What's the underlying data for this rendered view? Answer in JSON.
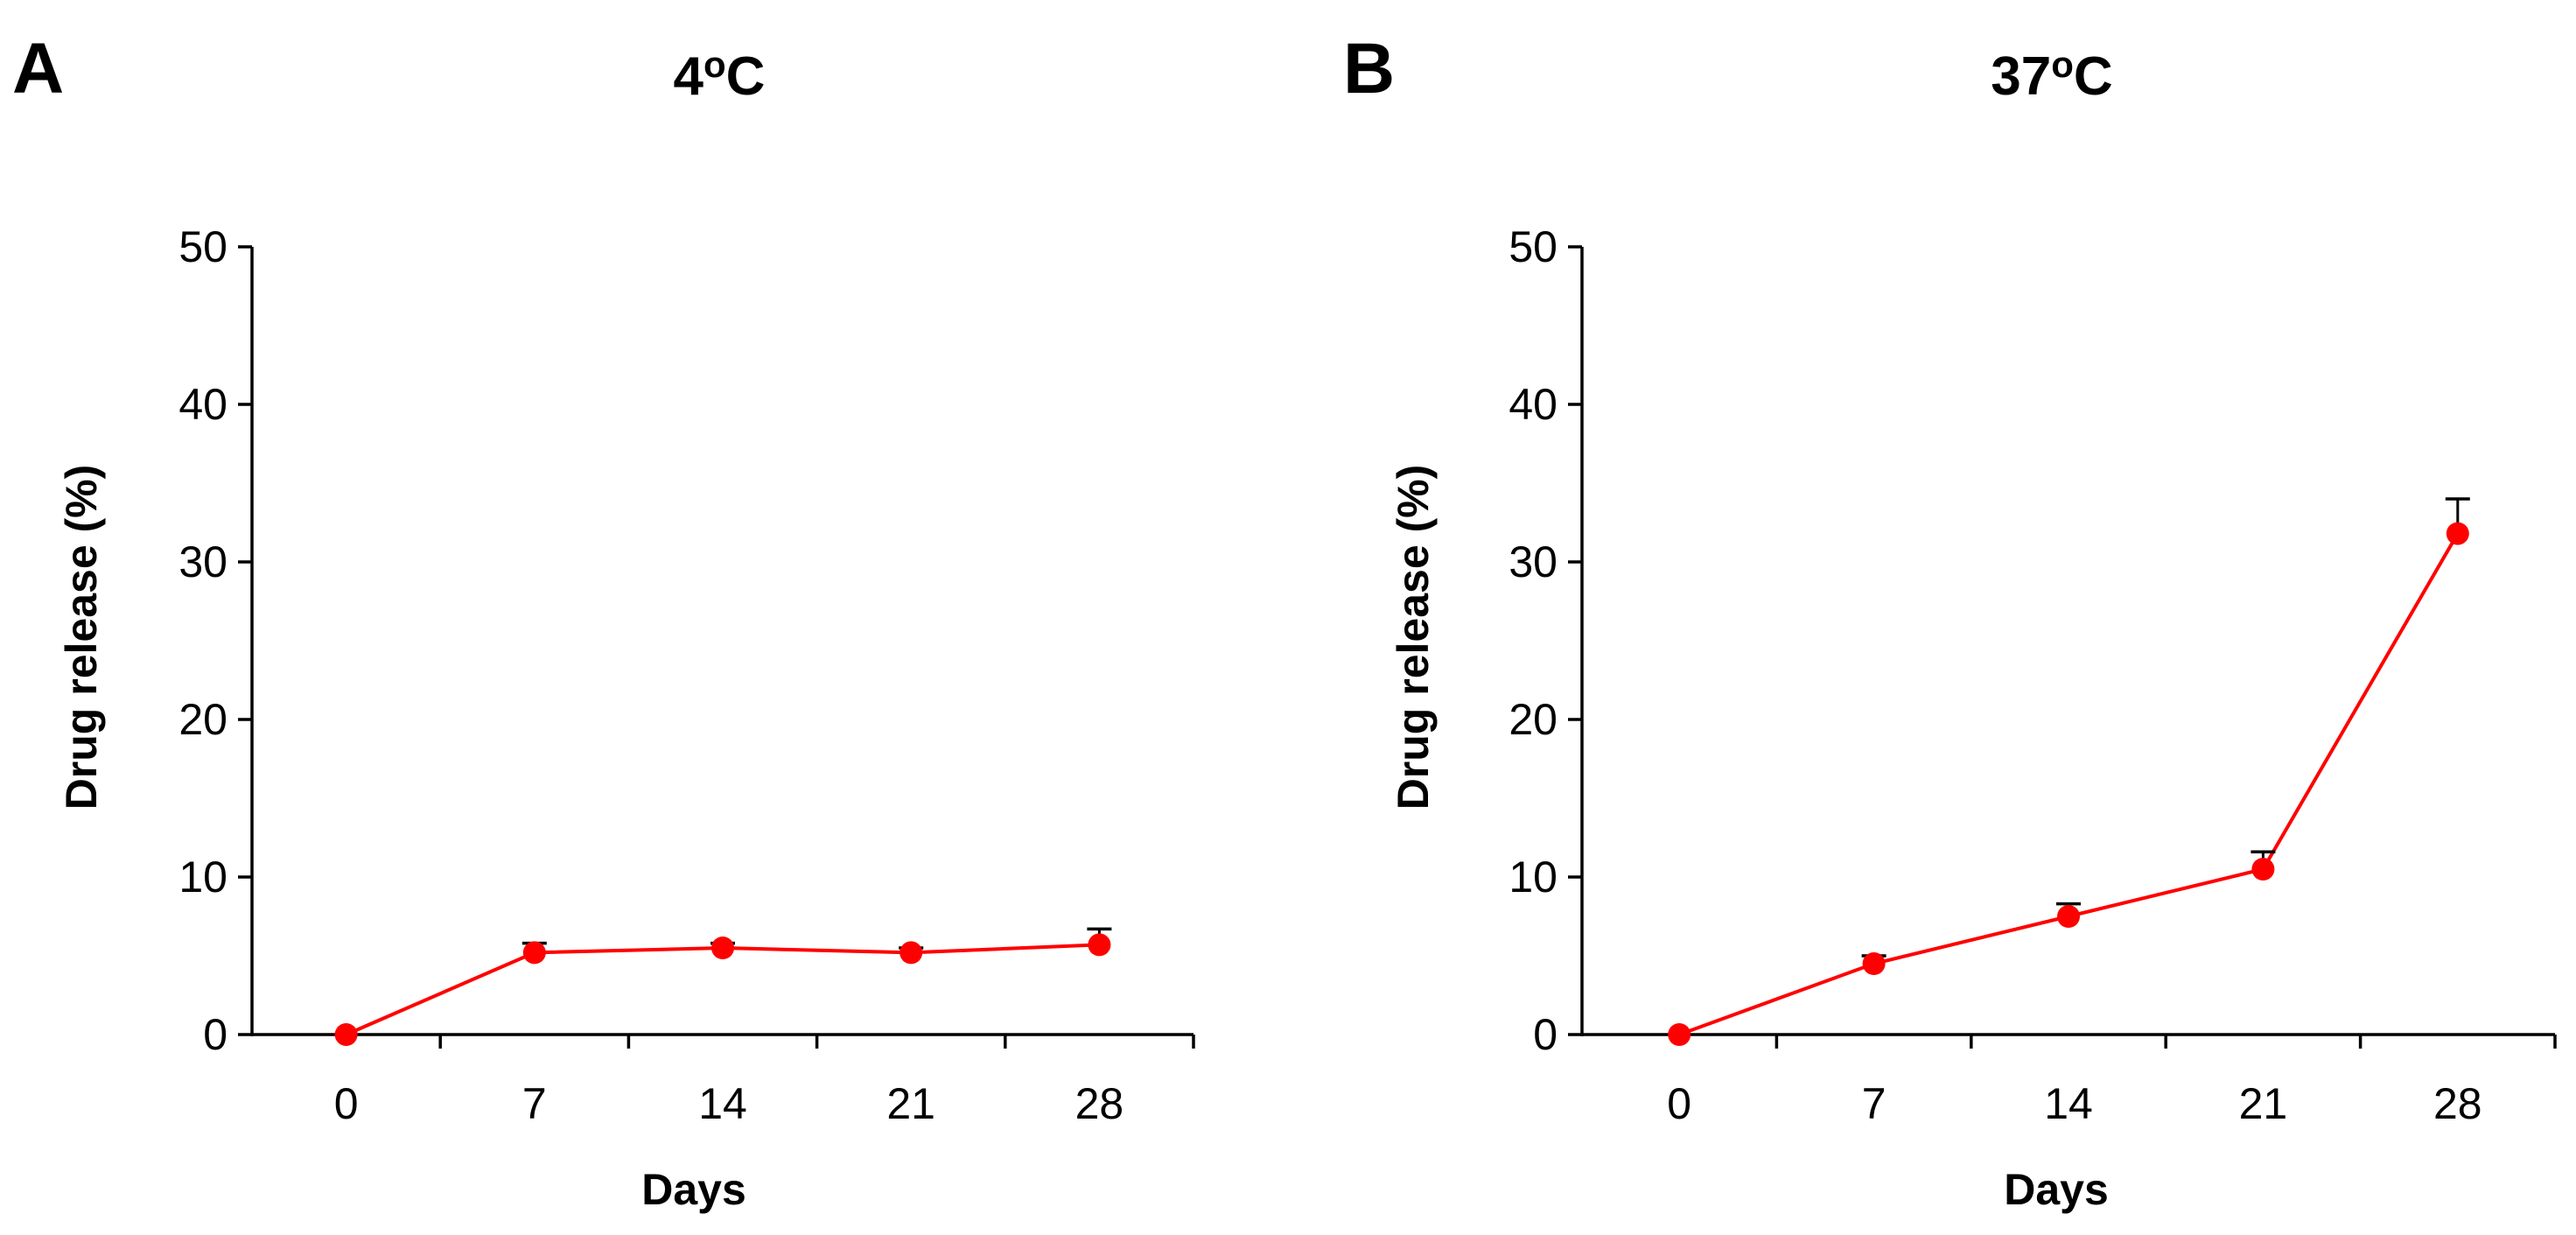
{
  "colors": {
    "series": "#ff0000",
    "axes": "#000000",
    "error_bars": "#000000"
  },
  "chart_data": [
    {
      "panel": "A",
      "type": "line",
      "title_main": "4",
      "title_sup": "o",
      "title_unit": "C",
      "xlabel": "Days",
      "ylabel": "Drug release (%)",
      "categories": [
        "0",
        "7",
        "14",
        "21",
        "28"
      ],
      "ylim": [
        0,
        50
      ],
      "yticks": [
        "0",
        "10",
        "20",
        "30",
        "40",
        "50"
      ],
      "grid": false,
      "series": [
        {
          "name": "Drug release",
          "values": [
            0,
            5.2,
            5.5,
            5.2,
            5.7
          ],
          "error": [
            0,
            0.6,
            0.3,
            0.3,
            1.0
          ]
        }
      ]
    },
    {
      "panel": "B",
      "type": "line",
      "title_main": "37",
      "title_sup": "o",
      "title_unit": "C",
      "xlabel": "Days",
      "ylabel": "Drug release (%)",
      "categories": [
        "0",
        "7",
        "14",
        "21",
        "28"
      ],
      "ylim": [
        0,
        50
      ],
      "yticks": [
        "0",
        "10",
        "20",
        "30",
        "40",
        "50"
      ],
      "grid": false,
      "series": [
        {
          "name": "Drug release",
          "values": [
            0,
            4.5,
            7.5,
            10.5,
            31.8
          ],
          "error": [
            0,
            0.5,
            0.8,
            1.1,
            2.2
          ]
        }
      ]
    }
  ]
}
